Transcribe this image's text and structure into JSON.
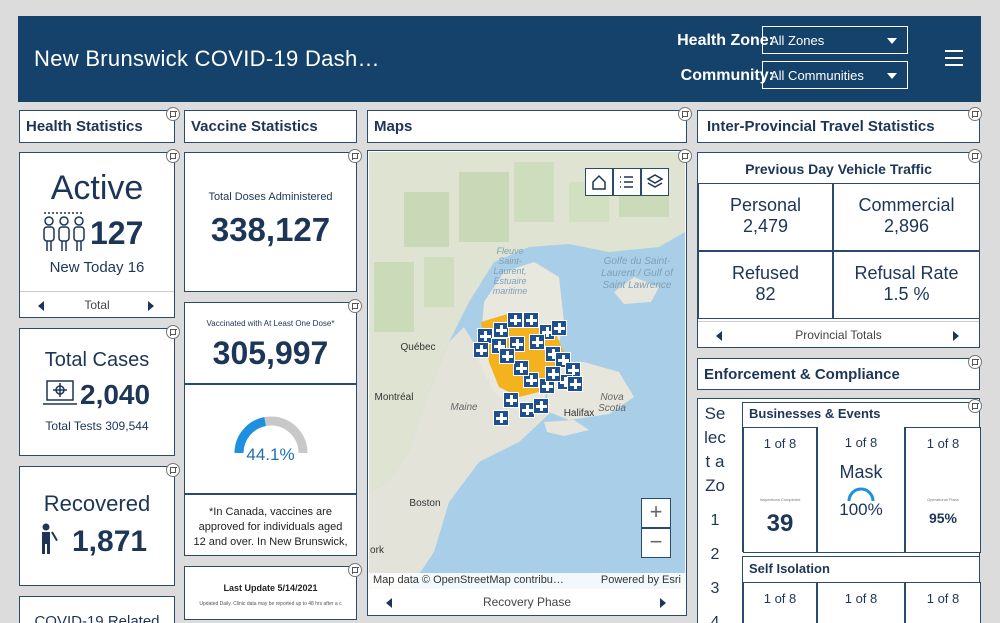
{
  "header": {
    "title": "New Brunswick COVID-19 Dash…",
    "health_zone_label": "Health Zone:",
    "health_zone_value": "All Zones",
    "community_label": "Community:",
    "community_value": "All Communities"
  },
  "health_statistics": {
    "title": "Health Statistics",
    "active_label": "Active",
    "active_value": "127",
    "new_today": "New Today 16",
    "nav_label": "Total",
    "total_cases_label": "Total Cases",
    "total_cases_value": "2,040",
    "total_tests": "Total Tests 309,544",
    "recovered_label": "Recovered",
    "recovered_value": "1,871",
    "covid_related_label": "COVID-19 Related"
  },
  "vaccine_statistics": {
    "title": "Vaccine Statistics",
    "total_doses_label": "Total Doses Administered",
    "total_doses_value": "338,127",
    "one_dose_label": "Vaccinated with At Least One Dose*",
    "one_dose_value": "305,997",
    "gauge_percent": 44.1,
    "gauge_label": "44.1%",
    "note": "*In Canada, vaccines are approved for individuals aged 12 and over.  In New Brunswick,",
    "last_update": "Last Update 5/14/2021",
    "last_update_sub": "Updated Daily. Clinic data may be reported up to 48 hrs after a c"
  },
  "maps": {
    "title": "Maps",
    "labels": {
      "fleuve": "Fleuve Saint-Laurent, Estuaire maritime",
      "golfe": "Golfe du Saint-Laurent / Gulf of Saint Lawrence",
      "quebec": "Québec",
      "montreal": "Montréal",
      "maine": "Maine",
      "halifax": "Halifax",
      "nova_scotia": "Nova Scotia",
      "boston": "Boston",
      "york": "ork"
    },
    "attribution": "Map data © OpenStreetMap contribu…",
    "powered_by": "Powered by Esri",
    "nav_label": "Recovery Phase",
    "zoom_in": "+",
    "zoom_out": "−"
  },
  "travel": {
    "title": "Inter-Provincial Travel Statistics",
    "subtitle": "Previous Day Vehicle Traffic",
    "personal_label": "Personal",
    "personal_value": "2,479",
    "commercial_label": "Commercial",
    "commercial_value": "2,896",
    "refused_label": "Refused",
    "refused_value": "82",
    "refusal_rate_label": "Refusal Rate",
    "refusal_rate_value": "1.5 %",
    "nav_label": "Provincial Totals"
  },
  "enforcement": {
    "title": "Enforcement & Compliance",
    "select_zone": [
      "Se",
      "lec",
      "t a",
      "Zo"
    ],
    "zone_numbers": [
      "1",
      "2",
      "3",
      "4"
    ],
    "businesses_title": "Businesses & Events",
    "card1_page": "1 of 8",
    "card1_small": "Inspections Completed",
    "card1_value": "39",
    "card2_page": "1 of 8",
    "card2_label": "Mask",
    "card2_value": "100%",
    "card3_page": "1 of 8",
    "card3_small": "Operational Plans",
    "card3_value": "95%",
    "self_isolation_title": "Self Isolation",
    "si_page1": "1 of 8",
    "si_page2": "1 of 8",
    "si_page3": "1 of 8"
  },
  "colors": {
    "header_bg": "#15426b",
    "accent": "#1d3557",
    "gauge": "#1e90e0",
    "map_region": "#f5b21f",
    "map_marker": "#1d4f91"
  }
}
